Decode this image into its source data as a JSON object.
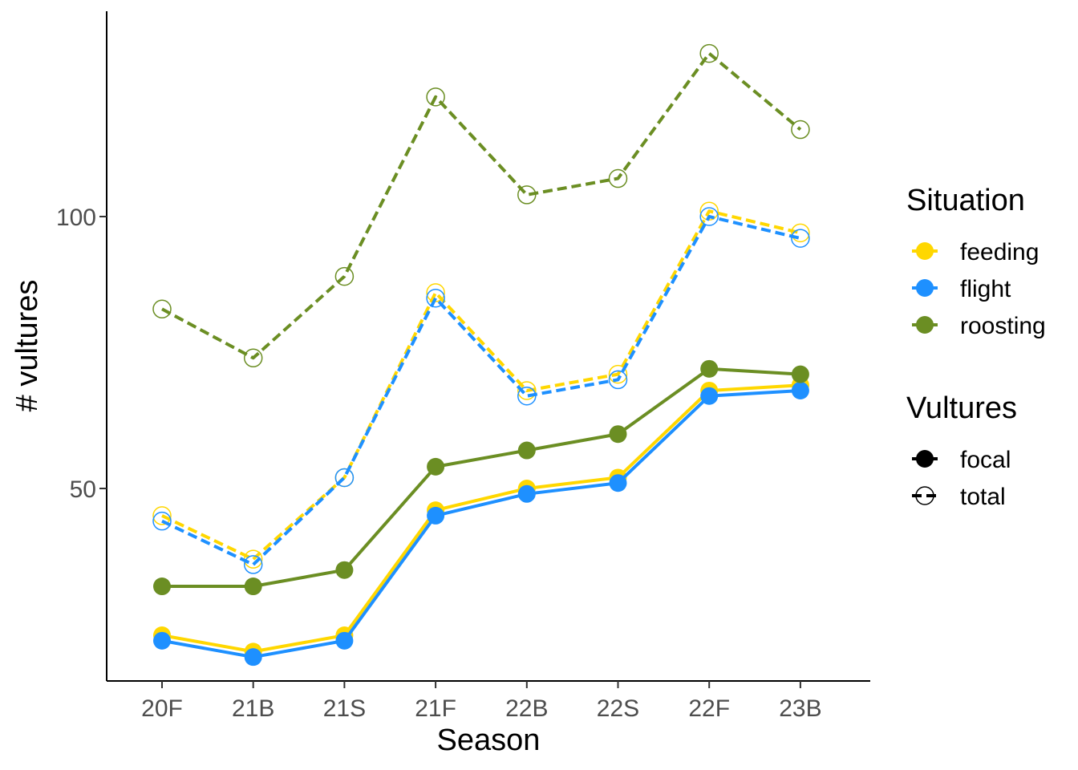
{
  "chart_data": {
    "type": "line",
    "title": "",
    "xlabel": "Season",
    "ylabel": "# vultures",
    "categories": [
      "20F",
      "21B",
      "21S",
      "21F",
      "22B",
      "22S",
      "22F",
      "23B"
    ],
    "yticks": [
      50,
      100
    ],
    "ylim": [
      14,
      133
    ],
    "grid": false,
    "legend_position": "right",
    "series": [
      {
        "situation": "feeding",
        "vultures": "focal",
        "color": "#FFD700",
        "values": [
          23,
          20,
          23,
          46,
          50,
          52,
          68,
          69
        ]
      },
      {
        "situation": "flight",
        "vultures": "focal",
        "color": "#1E90FF",
        "values": [
          22,
          19,
          22,
          45,
          49,
          51,
          67,
          68
        ]
      },
      {
        "situation": "roosting",
        "vultures": "focal",
        "color": "#6B8E23",
        "values": [
          32,
          32,
          35,
          54,
          57,
          60,
          72,
          71
        ]
      },
      {
        "situation": "feeding",
        "vultures": "total",
        "color": "#FFD700",
        "values": [
          45,
          37,
          52,
          86,
          68,
          71,
          101,
          97
        ]
      },
      {
        "situation": "flight",
        "vultures": "total",
        "color": "#1E90FF",
        "values": [
          44,
          36,
          52,
          85,
          67,
          70,
          100,
          96
        ]
      },
      {
        "situation": "roosting",
        "vultures": "total",
        "color": "#6B8E23",
        "values": [
          83,
          74,
          89,
          122,
          104,
          107,
          130,
          116
        ]
      }
    ],
    "legend": {
      "situation": {
        "title": "Situation",
        "entries": [
          {
            "label": "feeding",
            "color": "#FFD700"
          },
          {
            "label": "flight",
            "color": "#1E90FF"
          },
          {
            "label": "roosting",
            "color": "#6B8E23"
          }
        ]
      },
      "vultures": {
        "title": "Vultures",
        "entries": [
          {
            "label": "focal",
            "style": "solid-filled"
          },
          {
            "label": "total",
            "style": "dashed-open"
          }
        ]
      }
    }
  }
}
